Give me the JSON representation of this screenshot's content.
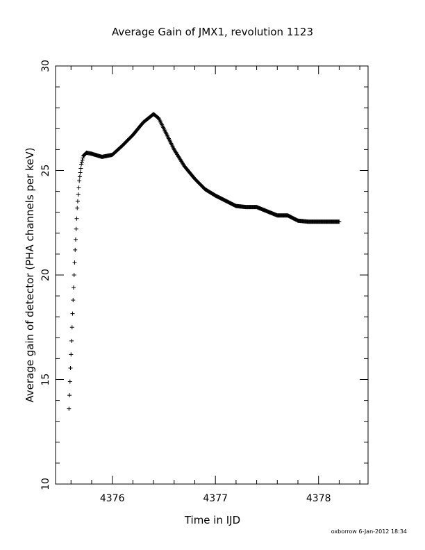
{
  "chart_data": {
    "type": "scatter",
    "title": "Average Gain of JMX1, revolution 1123",
    "xlabel": "Time in IJD",
    "ylabel": "Average gain of detector (PHA channels per keV)",
    "xlim": [
      4375.45,
      4378.48
    ],
    "ylim": [
      10,
      30
    ],
    "xticks": [
      4376,
      4377,
      4378
    ],
    "yticks": [
      10,
      15,
      20,
      25,
      30
    ],
    "marker": "+",
    "grid": false,
    "legend": "none",
    "footer": "oxborrow   6-Jan-2012 18:34",
    "series": [
      {
        "x": [
          4375.58,
          4375.6,
          4375.62,
          4375.64,
          4375.66,
          4375.68,
          4375.7,
          4375.72,
          4375.75,
          4375.8,
          4375.9,
          4376.0,
          4376.1,
          4376.2,
          4376.3,
          4376.4,
          4376.45,
          4376.5,
          4376.6,
          4376.7,
          4376.8,
          4376.9,
          4377.0,
          4377.1,
          4377.2,
          4377.3,
          4377.4,
          4377.5,
          4377.6,
          4377.7,
          4377.8,
          4377.9,
          4378.0,
          4378.1,
          4378.2
        ],
        "y": [
          13.6,
          16.2,
          18.8,
          21.2,
          23.2,
          24.5,
          25.3,
          25.7,
          25.85,
          25.8,
          25.65,
          25.75,
          26.2,
          26.7,
          27.3,
          27.7,
          27.5,
          27.0,
          26.0,
          25.2,
          24.6,
          24.1,
          23.8,
          23.55,
          23.3,
          23.25,
          23.25,
          23.05,
          22.85,
          22.85,
          22.6,
          22.55,
          22.55,
          22.55,
          22.55
        ]
      }
    ]
  }
}
